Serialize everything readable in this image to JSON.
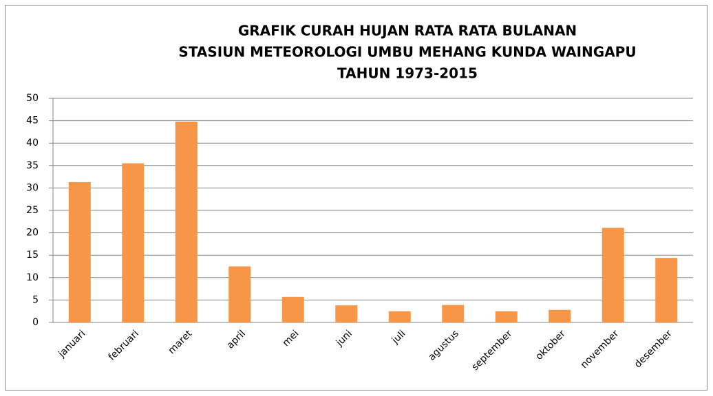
{
  "chart_data": {
    "type": "bar",
    "title": [
      "GRAFIK CURAH HUJAN RATA RATA BULANAN",
      "STASIUN METEOROLOGI UMBU MEHANG KUNDA WAINGAPU",
      "TAHUN 1973-2015"
    ],
    "categories": [
      "januari",
      "februari",
      "maret",
      "april",
      "mei",
      "juni",
      "juli",
      "agustus",
      "september",
      "oktober",
      "november",
      "desember"
    ],
    "values": [
      31.3,
      35.5,
      44.8,
      12.5,
      5.7,
      3.8,
      2.5,
      3.9,
      2.5,
      2.8,
      21.1,
      14.4
    ],
    "color": "#f79646",
    "ylim": [
      0,
      50
    ],
    "yticks": [
      0,
      5,
      10,
      15,
      20,
      25,
      30,
      35,
      40,
      45,
      50
    ],
    "grid": true
  }
}
